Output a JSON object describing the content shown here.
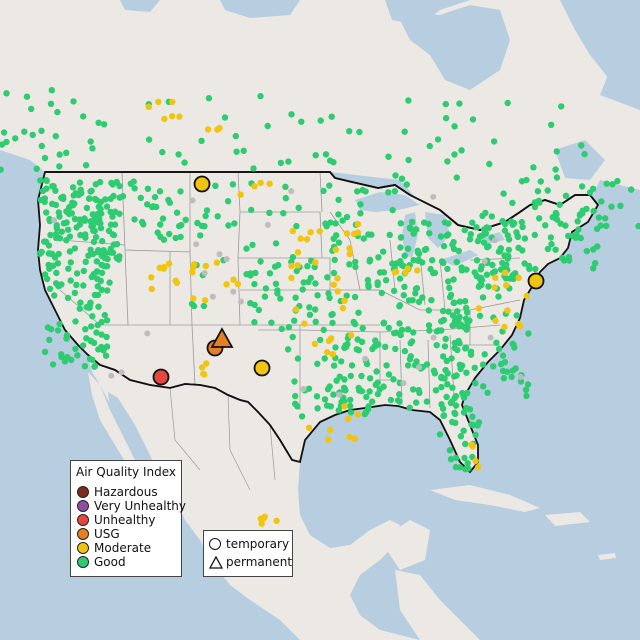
{
  "colors": {
    "ocean": "#b7cde0",
    "land": "#ece9e5",
    "lake": "#b7cde0",
    "border": "#111111",
    "state_line": "#9a9a9a"
  },
  "legend_aqi": {
    "title": "Air Quality Index",
    "items": [
      {
        "label": "Hazardous",
        "color": "#7e2b1e"
      },
      {
        "label": "Very Unhealthy",
        "color": "#8f4fa6"
      },
      {
        "label": "Unhealthy",
        "color": "#e8473f"
      },
      {
        "label": "USG",
        "color": "#e67e22"
      },
      {
        "label": "Moderate",
        "color": "#f1c40f"
      },
      {
        "label": "Good",
        "color": "#2ecc71"
      }
    ]
  },
  "legend_shape": {
    "items": [
      {
        "label": "temporary",
        "shape": "circle"
      },
      {
        "label": "permanent",
        "shape": "triangle"
      }
    ]
  },
  "highlight_sites": [
    {
      "category": "Moderate",
      "shape": "circle"
    },
    {
      "category": "Unhealthy",
      "shape": "circle"
    },
    {
      "category": "USG",
      "shape": "circle"
    },
    {
      "category": "USG",
      "shape": "triangle"
    },
    {
      "category": "Moderate",
      "shape": "circle"
    },
    {
      "category": "Moderate",
      "shape": "circle"
    }
  ]
}
